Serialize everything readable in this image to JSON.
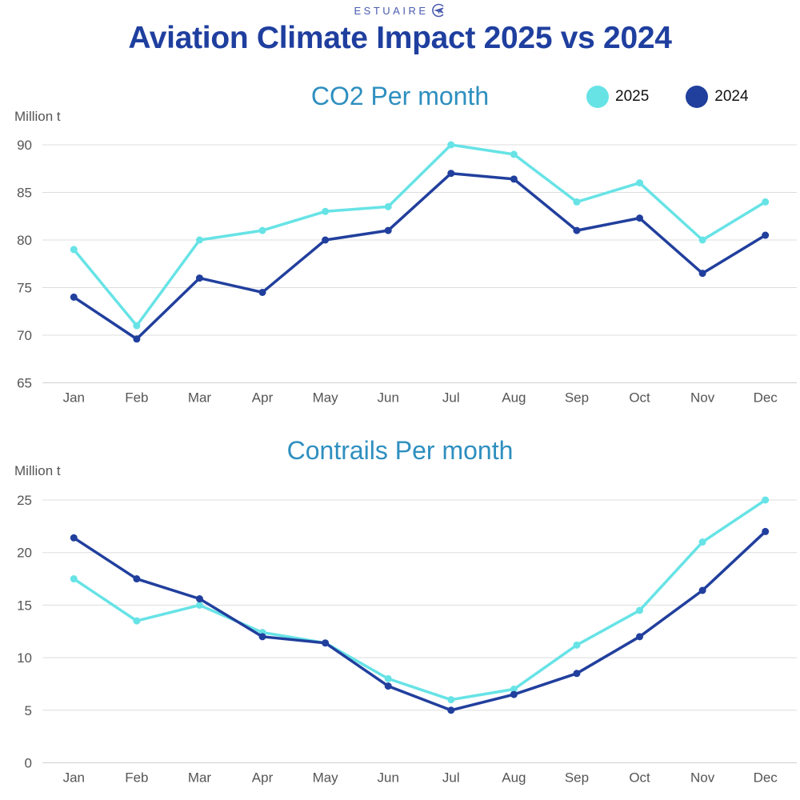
{
  "brand": {
    "name": "ESTUAIRE",
    "logo_icon": "plane-circle-icon"
  },
  "title": "Aviation Climate Impact 2025 vs 2024",
  "colors": {
    "series_2025": "#67e3e6",
    "series_2024": "#213f9d",
    "grid": "#dddddd",
    "title": "#1f3f9f",
    "chart_title": "#2e8fbf"
  },
  "legend": [
    {
      "label": "2025",
      "color": "#67e3e6"
    },
    {
      "label": "2024",
      "color": "#213f9d"
    }
  ],
  "chart_data": [
    {
      "type": "line",
      "title": "CO2 Per month",
      "ylabel": "Million t",
      "xlabel": "",
      "categories": [
        "Jan",
        "Feb",
        "Mar",
        "Apr",
        "May",
        "Jun",
        "Jul",
        "Aug",
        "Sep",
        "Oct",
        "Nov",
        "Dec"
      ],
      "ylim": [
        65,
        90
      ],
      "yticks": [
        65,
        70,
        75,
        80,
        85,
        90
      ],
      "grid": true,
      "legend_position": "top-right",
      "series": [
        {
          "name": "2025",
          "color": "#67e3e6",
          "values": [
            79,
            71,
            80,
            81,
            83,
            83.5,
            90,
            89,
            84,
            86,
            80,
            84
          ]
        },
        {
          "name": "2024",
          "color": "#213f9d",
          "values": [
            74,
            69.6,
            76,
            74.5,
            80,
            81,
            87,
            86.4,
            81,
            82.3,
            76.5,
            80.5
          ]
        }
      ]
    },
    {
      "type": "line",
      "title": "Contrails Per month",
      "ylabel": "Million t",
      "xlabel": "",
      "categories": [
        "Jan",
        "Feb",
        "Mar",
        "Apr",
        "May",
        "Jun",
        "Jul",
        "Aug",
        "Sep",
        "Oct",
        "Nov",
        "Dec"
      ],
      "ylim": [
        0,
        25
      ],
      "yticks": [
        0,
        5,
        10,
        15,
        20,
        25
      ],
      "grid": true,
      "series": [
        {
          "name": "2025",
          "color": "#67e3e6",
          "values": [
            17.5,
            13.5,
            15,
            12.4,
            11.4,
            8,
            6,
            7,
            11.2,
            14.5,
            21,
            25
          ]
        },
        {
          "name": "2024",
          "color": "#213f9d",
          "values": [
            21.4,
            17.5,
            15.6,
            12,
            11.4,
            7.3,
            5,
            6.5,
            8.5,
            12,
            16.4,
            22
          ]
        }
      ]
    }
  ]
}
